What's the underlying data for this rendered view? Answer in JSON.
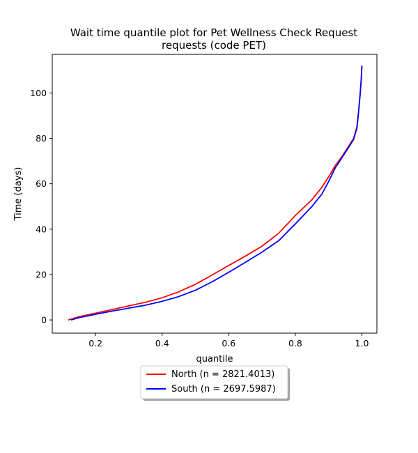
{
  "chart_data": {
    "type": "line",
    "title_lines": [
      "Wait time quantile plot for Pet Wellness Check Request",
      "requests (code PET)"
    ],
    "xlabel": "quantile",
    "ylabel": "Time (days)",
    "xlim": [
      0.07,
      1.045
    ],
    "ylim": [
      -5.8,
      117
    ],
    "xticks": [
      0.2,
      0.4,
      0.6,
      0.8,
      1.0
    ],
    "xtick_labels": [
      "0.2",
      "0.4",
      "0.6",
      "0.8",
      "1.0"
    ],
    "yticks": [
      0,
      20,
      40,
      60,
      80,
      100
    ],
    "ytick_labels": [
      "0",
      "20",
      "40",
      "60",
      "80",
      "100"
    ],
    "grid": false,
    "legend_placement": "below-center",
    "series": [
      {
        "name": "North (n = 2821.4013)",
        "color": "#ff0000",
        "x": [
          0.118,
          0.15,
          0.2,
          0.25,
          0.3,
          0.35,
          0.4,
          0.45,
          0.5,
          0.55,
          0.6,
          0.65,
          0.7,
          0.75,
          0.8,
          0.85,
          0.88,
          0.9,
          0.92,
          0.94,
          0.96,
          0.975,
          0.985,
          0.99,
          0.995,
          0.998,
          1.0
        ],
        "y": [
          0,
          1.4,
          3.0,
          4.6,
          6.2,
          7.8,
          9.8,
          12.4,
          15.7,
          19.8,
          24.0,
          28.1,
          32.5,
          38.2,
          46.0,
          53.0,
          58.5,
          63.0,
          68.0,
          72.0,
          76.5,
          80.0,
          85.0,
          92.0,
          100.0,
          106.0,
          112.0
        ]
      },
      {
        "name": "South (n = 2697.5987)",
        "color": "#0000ff",
        "x": [
          0.126,
          0.15,
          0.2,
          0.25,
          0.3,
          0.35,
          0.4,
          0.45,
          0.5,
          0.55,
          0.6,
          0.65,
          0.7,
          0.75,
          0.8,
          0.85,
          0.88,
          0.9,
          0.92,
          0.94,
          0.96,
          0.975,
          0.985,
          0.99,
          0.995,
          0.998,
          1.0
        ],
        "y": [
          0,
          1.0,
          2.5,
          3.9,
          5.2,
          6.5,
          8.2,
          10.3,
          13.1,
          16.8,
          21.0,
          25.4,
          29.9,
          34.9,
          42.3,
          50.0,
          55.5,
          61.0,
          67.0,
          71.5,
          76.0,
          79.5,
          84.5,
          91.5,
          100.0,
          106.0,
          112.0
        ]
      }
    ]
  }
}
